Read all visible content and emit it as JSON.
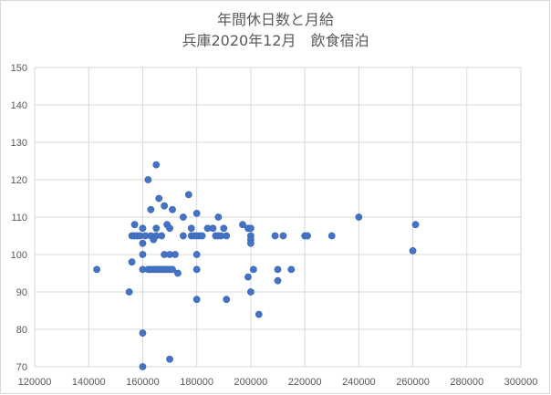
{
  "chart_data": {
    "type": "scatter",
    "title": "年間休日数と月給",
    "subtitle": "兵庫2020年12月　飲食宿泊",
    "xlabel": "",
    "ylabel": "",
    "xlim": [
      120000,
      300000
    ],
    "ylim": [
      70,
      150
    ],
    "x_ticks": [
      "120000",
      "140000",
      "160000",
      "180000",
      "200000",
      "220000",
      "240000",
      "260000",
      "280000",
      "300000"
    ],
    "y_ticks": [
      "70",
      "80",
      "90",
      "100",
      "110",
      "120",
      "130",
      "140",
      "150"
    ],
    "grid": true,
    "legend": "none",
    "marker_color": "#4472c4",
    "points": [
      {
        "x": 143000,
        "y": 96
      },
      {
        "x": 155000,
        "y": 90
      },
      {
        "x": 156000,
        "y": 98
      },
      {
        "x": 156000,
        "y": 105
      },
      {
        "x": 157000,
        "y": 108
      },
      {
        "x": 157000,
        "y": 105
      },
      {
        "x": 158000,
        "y": 105
      },
      {
        "x": 159000,
        "y": 105
      },
      {
        "x": 160000,
        "y": 107
      },
      {
        "x": 160000,
        "y": 103
      },
      {
        "x": 160000,
        "y": 100
      },
      {
        "x": 160000,
        "y": 96
      },
      {
        "x": 160000,
        "y": 79
      },
      {
        "x": 160000,
        "y": 70
      },
      {
        "x": 161000,
        "y": 105
      },
      {
        "x": 162000,
        "y": 120
      },
      {
        "x": 162000,
        "y": 96
      },
      {
        "x": 163000,
        "y": 112
      },
      {
        "x": 163000,
        "y": 105
      },
      {
        "x": 163000,
        "y": 96
      },
      {
        "x": 164000,
        "y": 104
      },
      {
        "x": 164000,
        "y": 96
      },
      {
        "x": 165000,
        "y": 124
      },
      {
        "x": 165000,
        "y": 107
      },
      {
        "x": 165000,
        "y": 105
      },
      {
        "x": 165000,
        "y": 96
      },
      {
        "x": 166000,
        "y": 115
      },
      {
        "x": 166000,
        "y": 96
      },
      {
        "x": 167000,
        "y": 105
      },
      {
        "x": 167000,
        "y": 96
      },
      {
        "x": 168000,
        "y": 113
      },
      {
        "x": 168000,
        "y": 100
      },
      {
        "x": 168000,
        "y": 96
      },
      {
        "x": 169000,
        "y": 108
      },
      {
        "x": 169000,
        "y": 96
      },
      {
        "x": 170000,
        "y": 107
      },
      {
        "x": 170000,
        "y": 100
      },
      {
        "x": 170000,
        "y": 96
      },
      {
        "x": 170000,
        "y": 72
      },
      {
        "x": 171000,
        "y": 112
      },
      {
        "x": 171000,
        "y": 96
      },
      {
        "x": 172000,
        "y": 100
      },
      {
        "x": 173000,
        "y": 95
      },
      {
        "x": 175000,
        "y": 110
      },
      {
        "x": 175000,
        "y": 105
      },
      {
        "x": 177000,
        "y": 116
      },
      {
        "x": 178000,
        "y": 107
      },
      {
        "x": 178000,
        "y": 105
      },
      {
        "x": 179000,
        "y": 105
      },
      {
        "x": 180000,
        "y": 111
      },
      {
        "x": 180000,
        "y": 105
      },
      {
        "x": 180000,
        "y": 100
      },
      {
        "x": 180000,
        "y": 96
      },
      {
        "x": 180000,
        "y": 88
      },
      {
        "x": 181000,
        "y": 105
      },
      {
        "x": 182000,
        "y": 105
      },
      {
        "x": 184000,
        "y": 107
      },
      {
        "x": 186000,
        "y": 107
      },
      {
        "x": 187000,
        "y": 105
      },
      {
        "x": 188000,
        "y": 110
      },
      {
        "x": 188000,
        "y": 105
      },
      {
        "x": 189000,
        "y": 105
      },
      {
        "x": 190000,
        "y": 107
      },
      {
        "x": 191000,
        "y": 105
      },
      {
        "x": 191000,
        "y": 88
      },
      {
        "x": 197000,
        "y": 108
      },
      {
        "x": 199000,
        "y": 107
      },
      {
        "x": 199000,
        "y": 94
      },
      {
        "x": 200000,
        "y": 107
      },
      {
        "x": 200000,
        "y": 105
      },
      {
        "x": 200000,
        "y": 104
      },
      {
        "x": 200000,
        "y": 103
      },
      {
        "x": 200000,
        "y": 90
      },
      {
        "x": 201000,
        "y": 96
      },
      {
        "x": 203000,
        "y": 84
      },
      {
        "x": 209000,
        "y": 105
      },
      {
        "x": 210000,
        "y": 96
      },
      {
        "x": 210000,
        "y": 93
      },
      {
        "x": 212000,
        "y": 105
      },
      {
        "x": 215000,
        "y": 96
      },
      {
        "x": 220000,
        "y": 105
      },
      {
        "x": 221000,
        "y": 105
      },
      {
        "x": 230000,
        "y": 105
      },
      {
        "x": 240000,
        "y": 110
      },
      {
        "x": 260000,
        "y": 101
      },
      {
        "x": 261000,
        "y": 108
      }
    ]
  }
}
